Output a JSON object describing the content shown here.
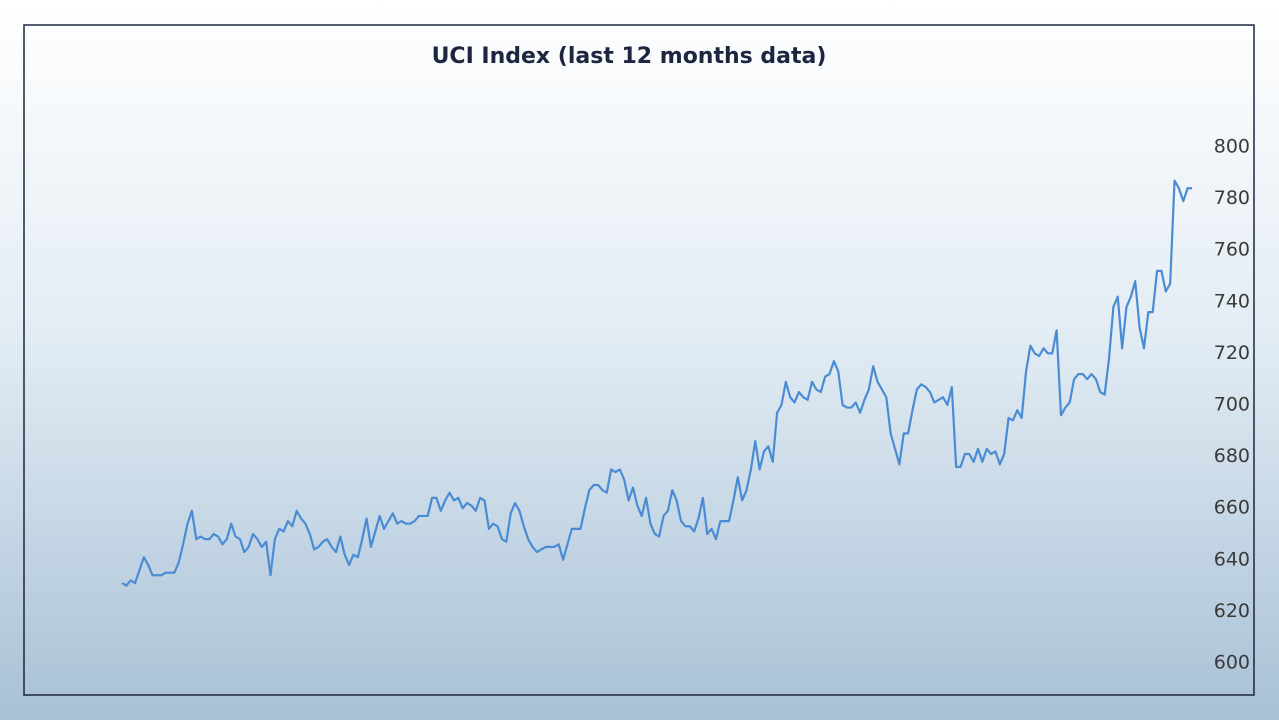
{
  "chart_data": {
    "type": "line",
    "title": "UCI Index (last 12 months data)",
    "color": "#4a8cd4",
    "grid": false,
    "ylim": [
      590,
      810
    ],
    "yticks": [
      600,
      620,
      640,
      660,
      680,
      700,
      720,
      740,
      760,
      780,
      800
    ],
    "values": [
      631,
      630,
      632,
      631,
      636,
      641,
      638,
      634,
      634,
      634,
      635,
      635,
      635,
      639,
      646,
      654,
      659,
      648,
      649,
      648,
      648,
      650,
      649,
      646,
      648,
      654,
      649,
      648,
      643,
      645,
      650,
      648,
      645,
      647,
      634,
      648,
      652,
      651,
      655,
      653,
      659,
      656,
      654,
      650,
      644,
      645,
      647,
      648,
      645,
      643,
      649,
      642,
      638,
      642,
      641,
      648,
      656,
      645,
      651,
      657,
      652,
      655,
      658,
      654,
      655,
      654,
      654,
      655,
      657,
      657,
      657,
      664,
      664,
      659,
      663,
      666,
      663,
      664,
      660,
      662,
      661,
      659,
      664,
      663,
      652,
      654,
      653,
      648,
      647,
      658,
      662,
      659,
      653,
      648,
      645,
      643,
      644,
      645,
      645,
      645,
      646,
      640,
      646,
      652,
      652,
      652,
      660,
      667,
      669,
      669,
      667,
      666,
      675,
      674,
      675,
      671,
      663,
      668,
      661,
      657,
      664,
      654,
      650,
      649,
      657,
      659,
      667,
      663,
      655,
      653,
      653,
      651,
      656,
      664,
      650,
      652,
      648,
      655,
      655,
      655,
      663,
      672,
      663,
      667,
      675,
      686,
      675,
      682,
      684,
      678,
      697,
      700,
      709,
      703,
      701,
      705,
      703,
      702,
      709,
      706,
      705,
      711,
      712,
      717,
      713,
      700,
      699,
      699,
      701,
      697,
      702,
      706,
      715,
      709,
      706,
      703,
      689,
      683,
      677,
      689,
      689,
      698,
      706,
      708,
      707,
      705,
      701,
      702,
      703,
      700,
      707,
      676,
      676,
      681,
      681,
      678,
      683,
      678,
      683,
      681,
      682,
      677,
      681,
      695,
      694,
      698,
      695,
      713,
      723,
      720,
      719,
      722,
      720,
      720,
      729,
      696,
      699,
      701,
      710,
      712,
      712,
      710,
      712,
      710,
      705,
      704,
      718,
      738,
      742,
      722,
      738,
      742,
      748,
      730,
      722,
      736,
      736,
      752,
      752,
      744,
      747,
      787,
      784,
      779,
      784,
      784
    ]
  }
}
